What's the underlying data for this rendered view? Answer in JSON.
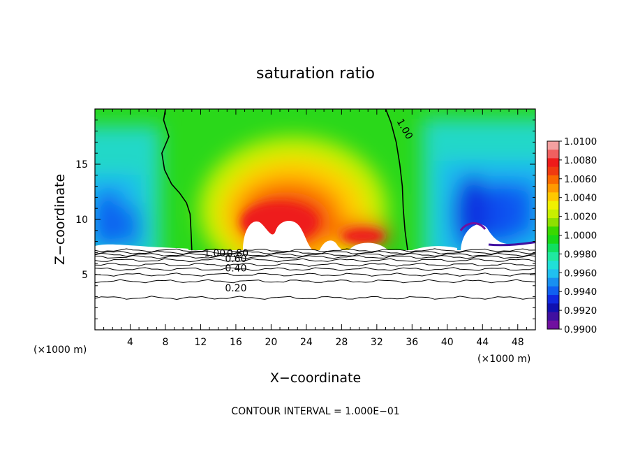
{
  "chart_data": {
    "type": "heatmap",
    "title": "saturation ratio",
    "xlabel": "X−coordinate",
    "ylabel": "Z−coordinate",
    "x_unit_left": "(×1000 m)",
    "x_unit_right": "(×1000 m)",
    "footer": "CONTOUR INTERVAL = 1.000E−01",
    "xlim": [
      0,
      50
    ],
    "ylim": [
      0,
      20
    ],
    "x_ticks": [
      "4",
      "8",
      "12",
      "16",
      "20",
      "24",
      "28",
      "32",
      "36",
      "40",
      "44",
      "48"
    ],
    "x_tick_values": [
      4,
      8,
      12,
      16,
      20,
      24,
      28,
      32,
      36,
      40,
      44,
      48
    ],
    "y_ticks": [
      "5",
      "10",
      "15"
    ],
    "y_tick_values": [
      5,
      10,
      15
    ],
    "cloud_base_z": 7.2,
    "colorbar": {
      "labels": [
        "1.0100",
        "1.0080",
        "1.0060",
        "1.0040",
        "1.0020",
        "1.0000",
        "0.9980",
        "0.9960",
        "0.9940",
        "0.9920",
        "0.9900"
      ],
      "colors_top_to_bottom": [
        "#f4a0a0",
        "#f06060",
        "#ee1a1a",
        "#f03a10",
        "#fa6a00",
        "#ff9a00",
        "#ffc800",
        "#f0f000",
        "#c8f000",
        "#8ee000",
        "#3ad800",
        "#18d818",
        "#10e060",
        "#20e8a0",
        "#20e0d8",
        "#20c0f0",
        "#1890f0",
        "#1060f0",
        "#1028e0",
        "#1010b0",
        "#4010a0",
        "#7010a0"
      ]
    },
    "contour_labels": [
      {
        "text": "1.00",
        "x": 35.2,
        "z": 18.2,
        "rotate": 60
      },
      {
        "text": "1.00",
        "x": 13.6,
        "z": 6.95,
        "rotate": 0
      },
      {
        "text": "0.80",
        "x": 16.2,
        "z": 6.95,
        "rotate": 0
      },
      {
        "text": "0.60",
        "x": 16.0,
        "z": 6.45,
        "rotate": 0
      },
      {
        "text": "0.40",
        "x": 16.0,
        "z": 5.6,
        "rotate": 0
      },
      {
        "text": "0.20",
        "x": 16.0,
        "z": 3.8,
        "rotate": 0
      }
    ],
    "contour_lines_below": [
      {
        "level": 1.0,
        "z": 7.2
      },
      {
        "level": 0.9,
        "z": 7.0
      },
      {
        "level": 0.8,
        "z": 6.8
      },
      {
        "level": 0.7,
        "z": 6.6
      },
      {
        "level": 0.6,
        "z": 6.3
      },
      {
        "level": 0.5,
        "z": 5.9
      },
      {
        "level": 0.4,
        "z": 5.5
      },
      {
        "level": 0.3,
        "z": 5.0
      },
      {
        "level": 0.2,
        "z": 4.4
      },
      {
        "level": 0.1,
        "z": 2.9
      }
    ],
    "contour_line_above_left": {
      "level": 1.0,
      "x": [
        8.0,
        7.8,
        8.4,
        7.6,
        7.9,
        8.7,
        9.6,
        10.4,
        10.8,
        10.9,
        11.0
      ],
      "z": [
        20.0,
        19.0,
        17.5,
        16.0,
        14.5,
        13.2,
        12.4,
        11.5,
        10.5,
        9.0,
        7.2
      ]
    },
    "contour_line_above_right": {
      "level": 1.0,
      "x": [
        33.0,
        33.6,
        34.2,
        34.6,
        34.9,
        35.0,
        35.2,
        35.5
      ],
      "z": [
        20.0,
        18.8,
        17.0,
        15.0,
        13.0,
        11.0,
        9.0,
        7.2
      ]
    }
  }
}
